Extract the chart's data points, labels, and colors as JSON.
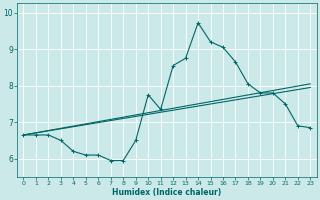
{
  "xlabel": "Humidex (Indice chaleur)",
  "xlim": [
    -0.5,
    23.5
  ],
  "ylim": [
    5.5,
    10.25
  ],
  "yticks": [
    6,
    7,
    8,
    9,
    10
  ],
  "xticks": [
    0,
    1,
    2,
    3,
    4,
    5,
    6,
    7,
    8,
    9,
    10,
    11,
    12,
    13,
    14,
    15,
    16,
    17,
    18,
    19,
    20,
    21,
    22,
    23
  ],
  "bg_color": "#cce9e9",
  "grid_color": "#ffffff",
  "line_color": "#006666",
  "line1_x": [
    0,
    1,
    2,
    3,
    4,
    5,
    6,
    7,
    8,
    9,
    10,
    11,
    12,
    13,
    14,
    15,
    16,
    17,
    18,
    19,
    20,
    21,
    22,
    23
  ],
  "line1_y": [
    6.65,
    6.65,
    6.65,
    6.5,
    6.2,
    6.1,
    6.1,
    5.95,
    5.95,
    6.5,
    7.75,
    7.35,
    8.55,
    8.75,
    9.72,
    9.2,
    9.05,
    8.65,
    8.05,
    7.8,
    7.8,
    7.5,
    6.9,
    6.85
  ],
  "line2_x": [
    0,
    23
  ],
  "line2_y": [
    6.65,
    7.95
  ],
  "line3_x": [
    0,
    23
  ],
  "line3_y": [
    6.65,
    8.05
  ]
}
